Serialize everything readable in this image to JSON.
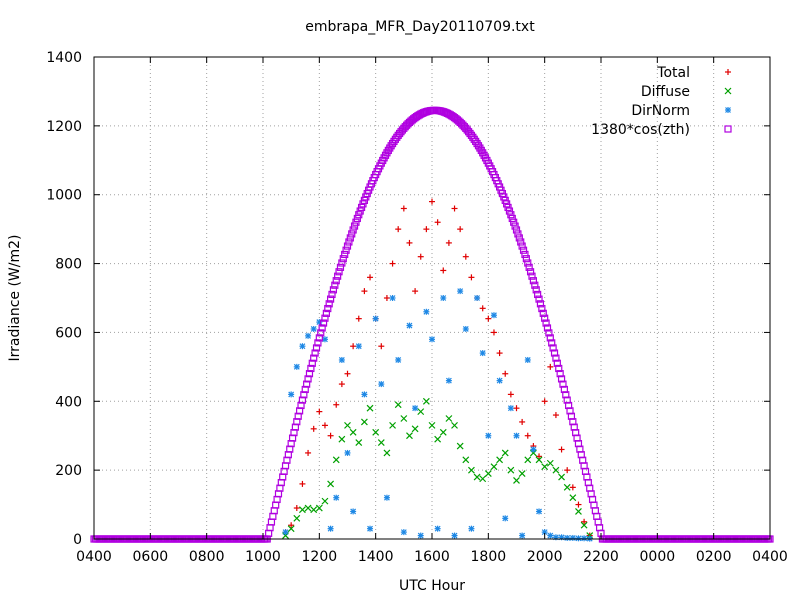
{
  "chart_data": {
    "type": "scatter",
    "title": "embrapa_MFR_Day20110709.txt",
    "xlabel": "UTC Hour",
    "ylabel": "Irradiance (W/m2)",
    "xlim": [
      4,
      28
    ],
    "ylim": [
      0,
      1400
    ],
    "grid": true,
    "legend_position": "top-right",
    "x_ticks": [
      {
        "value": 4,
        "label": "0400"
      },
      {
        "value": 6,
        "label": "0600"
      },
      {
        "value": 8,
        "label": "0800"
      },
      {
        "value": 10,
        "label": "1000"
      },
      {
        "value": 12,
        "label": "1200"
      },
      {
        "value": 14,
        "label": "1400"
      },
      {
        "value": 16,
        "label": "1600"
      },
      {
        "value": 18,
        "label": "1800"
      },
      {
        "value": 20,
        "label": "2000"
      },
      {
        "value": 22,
        "label": "2200"
      },
      {
        "value": 24,
        "label": "0000"
      },
      {
        "value": 26,
        "label": "0200"
      },
      {
        "value": 28,
        "label": "0400"
      }
    ],
    "y_ticks": [
      0,
      200,
      400,
      600,
      800,
      1000,
      1200,
      1400
    ],
    "series": [
      {
        "name": "Total",
        "marker": "plus",
        "color": "#e00000",
        "points": [
          [
            10.8,
            20
          ],
          [
            11.0,
            40
          ],
          [
            11.2,
            90
          ],
          [
            11.4,
            160
          ],
          [
            11.6,
            250
          ],
          [
            11.8,
            320
          ],
          [
            12.0,
            370
          ],
          [
            12.2,
            330
          ],
          [
            12.4,
            300
          ],
          [
            12.6,
            390
          ],
          [
            12.8,
            450
          ],
          [
            13.0,
            480
          ],
          [
            13.2,
            560
          ],
          [
            13.4,
            640
          ],
          [
            13.6,
            720
          ],
          [
            13.8,
            760
          ],
          [
            14.0,
            640
          ],
          [
            14.2,
            560
          ],
          [
            14.4,
            700
          ],
          [
            14.6,
            800
          ],
          [
            14.8,
            900
          ],
          [
            15.0,
            960
          ],
          [
            15.2,
            860
          ],
          [
            15.4,
            720
          ],
          [
            15.6,
            820
          ],
          [
            15.8,
            900
          ],
          [
            16.0,
            980
          ],
          [
            16.2,
            920
          ],
          [
            16.4,
            780
          ],
          [
            16.6,
            860
          ],
          [
            16.8,
            960
          ],
          [
            17.0,
            900
          ],
          [
            17.2,
            820
          ],
          [
            17.4,
            760
          ],
          [
            17.6,
            700
          ],
          [
            17.8,
            670
          ],
          [
            18.0,
            640
          ],
          [
            18.2,
            600
          ],
          [
            18.4,
            540
          ],
          [
            18.6,
            480
          ],
          [
            18.8,
            420
          ],
          [
            19.0,
            380
          ],
          [
            19.2,
            340
          ],
          [
            19.4,
            300
          ],
          [
            19.6,
            270
          ],
          [
            19.8,
            240
          ],
          [
            20.0,
            400
          ],
          [
            20.2,
            500
          ],
          [
            20.4,
            360
          ],
          [
            20.6,
            260
          ],
          [
            20.8,
            200
          ],
          [
            21.0,
            150
          ],
          [
            21.2,
            100
          ],
          [
            21.4,
            50
          ],
          [
            21.6,
            10
          ]
        ]
      },
      {
        "name": "Diffuse",
        "marker": "cross",
        "color": "#00a000",
        "points": [
          [
            10.8,
            10
          ],
          [
            11.0,
            30
          ],
          [
            11.2,
            60
          ],
          [
            11.4,
            85
          ],
          [
            11.6,
            90
          ],
          [
            11.8,
            85
          ],
          [
            12.0,
            90
          ],
          [
            12.2,
            110
          ],
          [
            12.4,
            160
          ],
          [
            12.6,
            230
          ],
          [
            12.8,
            290
          ],
          [
            13.0,
            330
          ],
          [
            13.2,
            310
          ],
          [
            13.4,
            280
          ],
          [
            13.6,
            340
          ],
          [
            13.8,
            380
          ],
          [
            14.0,
            310
          ],
          [
            14.2,
            280
          ],
          [
            14.4,
            250
          ],
          [
            14.6,
            330
          ],
          [
            14.8,
            390
          ],
          [
            15.0,
            350
          ],
          [
            15.2,
            300
          ],
          [
            15.4,
            320
          ],
          [
            15.6,
            370
          ],
          [
            15.8,
            400
          ],
          [
            16.0,
            330
          ],
          [
            16.2,
            290
          ],
          [
            16.4,
            310
          ],
          [
            16.6,
            350
          ],
          [
            16.8,
            330
          ],
          [
            17.0,
            270
          ],
          [
            17.2,
            230
          ],
          [
            17.4,
            200
          ],
          [
            17.6,
            180
          ],
          [
            17.8,
            175
          ],
          [
            18.0,
            190
          ],
          [
            18.2,
            210
          ],
          [
            18.4,
            230
          ],
          [
            18.6,
            250
          ],
          [
            18.8,
            200
          ],
          [
            19.0,
            170
          ],
          [
            19.2,
            190
          ],
          [
            19.4,
            230
          ],
          [
            19.6,
            250
          ],
          [
            19.8,
            230
          ],
          [
            20.0,
            210
          ],
          [
            20.2,
            220
          ],
          [
            20.4,
            200
          ],
          [
            20.6,
            180
          ],
          [
            20.8,
            150
          ],
          [
            21.0,
            120
          ],
          [
            21.2,
            80
          ],
          [
            21.4,
            40
          ],
          [
            21.6,
            10
          ]
        ]
      },
      {
        "name": "DirNorm",
        "marker": "star",
        "color": "#1e88e5",
        "points": [
          [
            10.8,
            20
          ],
          [
            11.0,
            420
          ],
          [
            11.2,
            500
          ],
          [
            11.4,
            560
          ],
          [
            11.6,
            590
          ],
          [
            11.8,
            610
          ],
          [
            12.0,
            630
          ],
          [
            12.2,
            580
          ],
          [
            12.4,
            30
          ],
          [
            12.6,
            120
          ],
          [
            12.8,
            520
          ],
          [
            13.0,
            250
          ],
          [
            13.2,
            80
          ],
          [
            13.4,
            560
          ],
          [
            13.6,
            420
          ],
          [
            13.8,
            30
          ],
          [
            14.0,
            640
          ],
          [
            14.2,
            450
          ],
          [
            14.4,
            120
          ],
          [
            14.6,
            700
          ],
          [
            14.8,
            520
          ],
          [
            15.0,
            20
          ],
          [
            15.2,
            620
          ],
          [
            15.4,
            380
          ],
          [
            15.6,
            10
          ],
          [
            15.8,
            660
          ],
          [
            16.0,
            580
          ],
          [
            16.2,
            30
          ],
          [
            16.4,
            700
          ],
          [
            16.6,
            460
          ],
          [
            16.8,
            10
          ],
          [
            17.0,
            720
          ],
          [
            17.2,
            610
          ],
          [
            17.4,
            30
          ],
          [
            17.6,
            700
          ],
          [
            17.8,
            540
          ],
          [
            18.0,
            300
          ],
          [
            18.2,
            650
          ],
          [
            18.4,
            460
          ],
          [
            18.6,
            60
          ],
          [
            18.8,
            380
          ],
          [
            19.0,
            300
          ],
          [
            19.2,
            10
          ],
          [
            19.4,
            520
          ],
          [
            19.6,
            260
          ],
          [
            19.8,
            80
          ],
          [
            20.0,
            20
          ],
          [
            20.2,
            10
          ],
          [
            20.4,
            5
          ],
          [
            20.6,
            5
          ],
          [
            20.8,
            3
          ],
          [
            21.0,
            3
          ],
          [
            21.2,
            2
          ],
          [
            21.4,
            2
          ],
          [
            21.6,
            1
          ]
        ]
      },
      {
        "name": "1380*cos(zth)",
        "marker": "square",
        "color": "#b000e0",
        "curve": {
          "peak_x": 16.1,
          "peak_y": 1245,
          "start_x": 10.15,
          "end_x": 22.05
        }
      }
    ]
  }
}
